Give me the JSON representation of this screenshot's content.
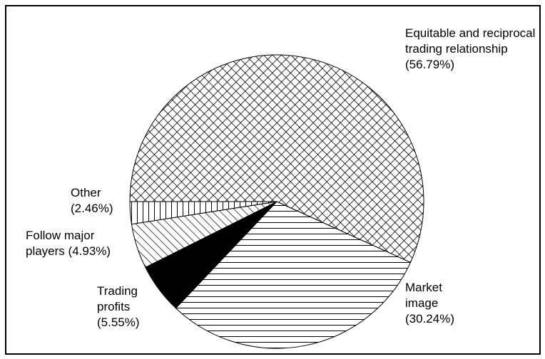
{
  "chart_data": {
    "type": "pie",
    "categories": [
      "Equitable and reciprocal trading relationship",
      "Market image",
      "Trading profits",
      "Follow major players",
      "Other"
    ],
    "values": [
      56.79,
      30.24,
      5.55,
      4.93,
      2.46
    ],
    "value_labels": [
      "(56.79%)",
      "(30.24%)",
      "(5.55%)",
      "(4.93%)",
      "(2.46%)"
    ],
    "fills": [
      "crosshatch",
      "horizontal",
      "solid",
      "diagonal",
      "vertical"
    ]
  }
}
